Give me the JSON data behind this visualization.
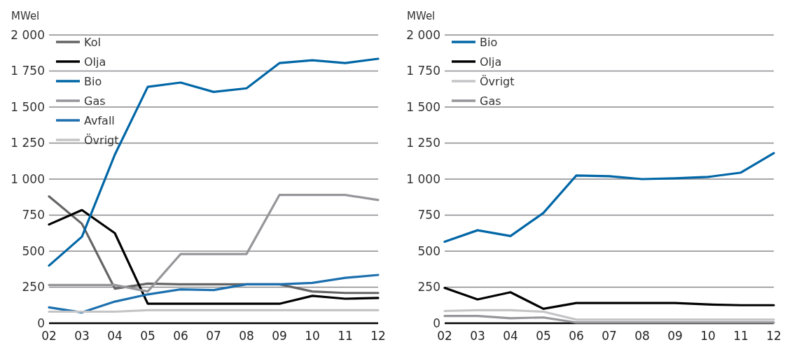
{
  "chart_data": [
    {
      "type": "line",
      "ylabel": "MWel",
      "categories": [
        "02",
        "03",
        "04",
        "05",
        "06",
        "07",
        "08",
        "09",
        "10",
        "11",
        "12"
      ],
      "ylim": [
        0,
        2000
      ],
      "yticks": [
        0,
        250,
        500,
        750,
        {
          "value": 1000,
          "label": "1 000"
        },
        {
          "value": 1250,
          "label": "1 250"
        },
        {
          "value": 1500,
          "label": "1 500"
        },
        {
          "value": 1750,
          "label": "1 750"
        },
        {
          "value": 2000,
          "label": "2 000"
        }
      ],
      "grid": "y",
      "legend": "top left",
      "series": [
        {
          "name": "Kol",
          "color": "#646464",
          "values": [
            880,
            690,
            240,
            275,
            270,
            270,
            270,
            270,
            220,
            210,
            210
          ]
        },
        {
          "name": "Olja",
          "color": "#000000",
          "values": [
            685,
            785,
            625,
            135,
            135,
            135,
            135,
            135,
            190,
            170,
            175
          ]
        },
        {
          "name": "Bio",
          "color": "#0066a6",
          "values": [
            400,
            600,
            1170,
            1640,
            1670,
            1605,
            1630,
            1805,
            1825,
            1805,
            1835
          ]
        },
        {
          "name": "Gas",
          "color": "#96969a",
          "values": [
            265,
            265,
            265,
            220,
            480,
            480,
            480,
            890,
            890,
            890,
            855
          ]
        },
        {
          "name": "Avfall",
          "color": "#1c6fae",
          "values": [
            110,
            75,
            150,
            200,
            235,
            230,
            270,
            270,
            280,
            315,
            335
          ]
        },
        {
          "name": "Övrigt",
          "color": "#c4c4c6",
          "values": [
            80,
            80,
            80,
            90,
            90,
            90,
            90,
            90,
            90,
            90,
            90
          ]
        }
      ]
    },
    {
      "type": "line",
      "ylabel": "MWel",
      "categories": [
        "02",
        "03",
        "04",
        "05",
        "06",
        "07",
        "08",
        "09",
        "10",
        "11",
        "12"
      ],
      "ylim": [
        0,
        2000
      ],
      "yticks": [
        0,
        250,
        500,
        750,
        {
          "value": 1000,
          "label": "1 000"
        },
        {
          "value": 1250,
          "label": "1 250"
        },
        {
          "value": 1500,
          "label": "1 500"
        },
        {
          "value": 1750,
          "label": "1 750"
        },
        {
          "value": 2000,
          "label": "2 000"
        }
      ],
      "grid": "y",
      "legend": "top left",
      "series": [
        {
          "name": "Bio",
          "color": "#0066a6",
          "values": [
            565,
            645,
            605,
            765,
            1025,
            1020,
            1000,
            1005,
            1015,
            1045,
            1180
          ]
        },
        {
          "name": "Olja",
          "color": "#000000",
          "values": [
            245,
            165,
            215,
            100,
            140,
            140,
            140,
            140,
            130,
            125,
            125
          ]
        },
        {
          "name": "Övrigt",
          "color": "#c4c4c6",
          "values": [
            85,
            90,
            90,
            80,
            25,
            25,
            25,
            25,
            25,
            25,
            25
          ]
        },
        {
          "name": "Gas",
          "color": "#96969a",
          "values": [
            50,
            50,
            35,
            40,
            5,
            5,
            5,
            5,
            5,
            5,
            5
          ]
        }
      ]
    }
  ]
}
